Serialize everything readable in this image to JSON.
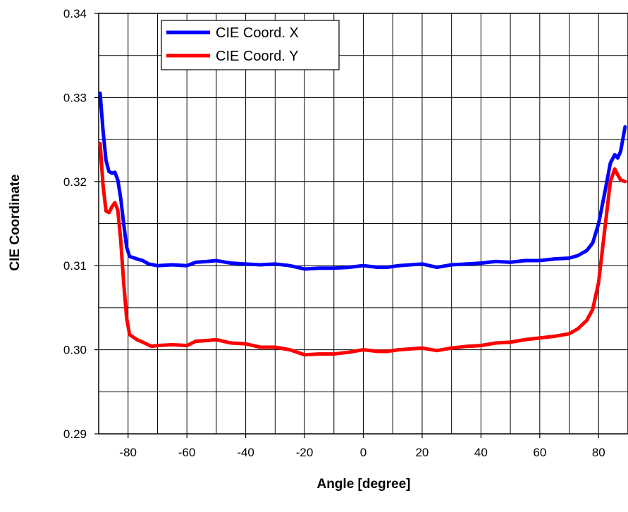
{
  "chart_data": {
    "type": "line",
    "title": "",
    "xlabel": "Angle [degree]",
    "ylabel": "CIE  Coordinate",
    "xlim": [
      -90,
      90
    ],
    "ylim": [
      0.29,
      0.34
    ],
    "grid": true,
    "legend_position": "top-left",
    "x_ticks": [
      -80,
      -60,
      -40,
      -20,
      0,
      20,
      40,
      60,
      80
    ],
    "x_tick_labels": [
      "-80",
      "-60",
      "-40",
      "-20",
      "0",
      "20",
      "40",
      "60",
      "80"
    ],
    "y_ticks": [
      0.29,
      0.3,
      0.31,
      0.32,
      0.33,
      0.34
    ],
    "y_tick_labels": [
      "0.29",
      "0.30",
      "0.31",
      "0.32",
      "0.33",
      "0.34"
    ],
    "series": [
      {
        "name": "CIE Coord. X",
        "color": "#0000ff",
        "points": [
          [
            -89.5,
            0.3305
          ],
          [
            -88.5,
            0.326
          ],
          [
            -87.5,
            0.3225
          ],
          [
            -86.5,
            0.3212
          ],
          [
            -85.5,
            0.321
          ],
          [
            -84.5,
            0.3211
          ],
          [
            -83.5,
            0.3202
          ],
          [
            -82.5,
            0.318
          ],
          [
            -81.5,
            0.315
          ],
          [
            -80.5,
            0.3122
          ],
          [
            -79.5,
            0.3111
          ],
          [
            -77,
            0.3108
          ],
          [
            -75,
            0.3106
          ],
          [
            -73,
            0.3102
          ],
          [
            -70,
            0.31
          ],
          [
            -65,
            0.3101
          ],
          [
            -60,
            0.31
          ],
          [
            -57,
            0.3104
          ],
          [
            -53,
            0.3105
          ],
          [
            -50,
            0.3106
          ],
          [
            -45,
            0.3103
          ],
          [
            -40,
            0.3102
          ],
          [
            -35,
            0.3101
          ],
          [
            -30,
            0.3102
          ],
          [
            -25,
            0.31
          ],
          [
            -20,
            0.3096
          ],
          [
            -15,
            0.3097
          ],
          [
            -10,
            0.3097
          ],
          [
            -5,
            0.3098
          ],
          [
            0,
            0.31
          ],
          [
            5,
            0.3098
          ],
          [
            8,
            0.3098
          ],
          [
            12,
            0.31
          ],
          [
            20,
            0.3102
          ],
          [
            25,
            0.3098
          ],
          [
            30,
            0.3101
          ],
          [
            35,
            0.3102
          ],
          [
            40,
            0.3103
          ],
          [
            45,
            0.3105
          ],
          [
            50,
            0.3104
          ],
          [
            55,
            0.3106
          ],
          [
            60,
            0.3106
          ],
          [
            65,
            0.3108
          ],
          [
            70,
            0.3109
          ],
          [
            73,
            0.3112
          ],
          [
            76,
            0.3118
          ],
          [
            78,
            0.3127
          ],
          [
            80,
            0.315
          ],
          [
            82,
            0.3185
          ],
          [
            84,
            0.3222
          ],
          [
            85.5,
            0.3232
          ],
          [
            86.5,
            0.3228
          ],
          [
            87.5,
            0.3236
          ],
          [
            89,
            0.3265
          ]
        ]
      },
      {
        "name": "CIE Coord. Y",
        "color": "#ff0000",
        "points": [
          [
            -89.5,
            0.3245
          ],
          [
            -88.5,
            0.3195
          ],
          [
            -87.5,
            0.3165
          ],
          [
            -86.5,
            0.3163
          ],
          [
            -85.5,
            0.317
          ],
          [
            -84.5,
            0.3175
          ],
          [
            -83.5,
            0.3166
          ],
          [
            -82.5,
            0.313
          ],
          [
            -81.5,
            0.308
          ],
          [
            -80.5,
            0.3038
          ],
          [
            -79.5,
            0.3018
          ],
          [
            -77,
            0.3012
          ],
          [
            -75,
            0.3009
          ],
          [
            -72,
            0.3004
          ],
          [
            -70,
            0.3005
          ],
          [
            -65,
            0.3006
          ],
          [
            -60,
            0.3005
          ],
          [
            -57,
            0.301
          ],
          [
            -53,
            0.3011
          ],
          [
            -50,
            0.3012
          ],
          [
            -45,
            0.3008
          ],
          [
            -40,
            0.3007
          ],
          [
            -35,
            0.3003
          ],
          [
            -30,
            0.3003
          ],
          [
            -25,
            0.3
          ],
          [
            -20,
            0.2994
          ],
          [
            -15,
            0.2995
          ],
          [
            -10,
            0.2995
          ],
          [
            -5,
            0.2997
          ],
          [
            0,
            0.3
          ],
          [
            5,
            0.2998
          ],
          [
            8,
            0.2998
          ],
          [
            12,
            0.3
          ],
          [
            20,
            0.3002
          ],
          [
            25,
            0.2999
          ],
          [
            30,
            0.3002
          ],
          [
            35,
            0.3004
          ],
          [
            40,
            0.3005
          ],
          [
            45,
            0.3008
          ],
          [
            50,
            0.3009
          ],
          [
            55,
            0.3012
          ],
          [
            60,
            0.3014
          ],
          [
            65,
            0.3016
          ],
          [
            70,
            0.3019
          ],
          [
            73,
            0.3025
          ],
          [
            76,
            0.3035
          ],
          [
            78,
            0.3048
          ],
          [
            80,
            0.308
          ],
          [
            82,
            0.314
          ],
          [
            84,
            0.32
          ],
          [
            85.5,
            0.3215
          ],
          [
            86.5,
            0.3208
          ],
          [
            87.5,
            0.3202
          ],
          [
            89,
            0.32
          ]
        ]
      }
    ]
  }
}
